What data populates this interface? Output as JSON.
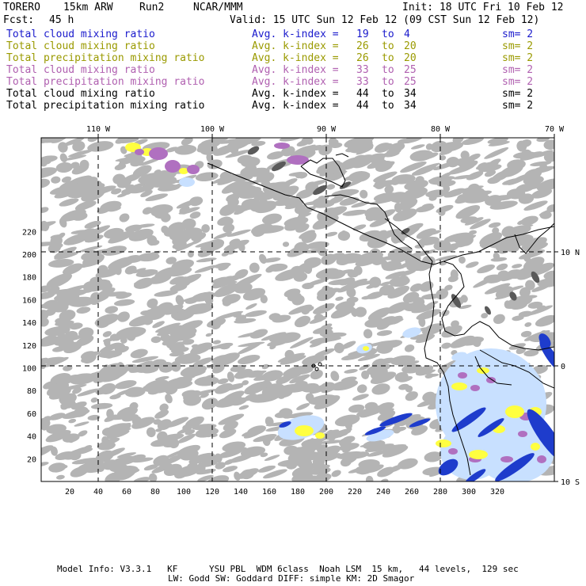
{
  "header": {
    "model": "TORERO",
    "resolution": "15km ARW",
    "run": "Run2",
    "org": "NCAR/MMM",
    "init": "Init: 18 UTC Fri 10 Feb 12",
    "fcst_label": "Fcst:",
    "fcst_value": "45 h",
    "valid": "Valid: 15 UTC Sun 12 Feb 12 (09 CST Sun 12 Feb 12)"
  },
  "legend": [
    {
      "field": "Total cloud mixing ratio",
      "avg": "Avg. k-index =",
      "from": "19",
      "to_word": "to",
      "to": "4",
      "sm": "sm= 2",
      "color": "#1a1acc"
    },
    {
      "field": "Total cloud mixing ratio",
      "avg": "Avg. k-index =",
      "from": "26",
      "to_word": "to",
      "to": "20",
      "sm": "sm= 2",
      "color": "#9a9a00"
    },
    {
      "field": "Total precipitation mixing ratio",
      "avg": "Avg. k-index =",
      "from": "26",
      "to_word": "to",
      "to": "20",
      "sm": "sm= 2",
      "color": "#9a9a00"
    },
    {
      "field": "Total cloud mixing ratio",
      "avg": "Avg. k-index =",
      "from": "33",
      "to_word": "to",
      "to": "25",
      "sm": "sm= 2",
      "color": "#b060b0"
    },
    {
      "field": "Total precipitation mixing ratio",
      "avg": "Avg. k-index =",
      "from": "33",
      "to_word": "to",
      "to": "25",
      "sm": "sm= 2",
      "color": "#b060b0"
    },
    {
      "field": "Total cloud mixing ratio",
      "avg": "Avg. k-index =",
      "from": "44",
      "to_word": "to",
      "to": "34",
      "sm": "sm= 2",
      "color": "#000000"
    },
    {
      "field": "Total precipitation mixing ratio",
      "avg": "Avg. k-index =",
      "from": "44",
      "to_word": "to",
      "to": "34",
      "sm": "sm= 2",
      "color": "#000000"
    }
  ],
  "map": {
    "lon_labels": [
      "110 W",
      "100 W",
      "90 W",
      "80 W",
      "70 W"
    ],
    "lat_labels": [
      "10 N",
      "0",
      "10 S"
    ],
    "x_ticks": [
      "20",
      "40",
      "60",
      "80",
      "100",
      "120",
      "140",
      "160",
      "180",
      "200",
      "220",
      "240",
      "260",
      "280",
      "300",
      "320"
    ],
    "y_ticks": [
      "20",
      "40",
      "60",
      "80",
      "100",
      "120",
      "140",
      "160",
      "180",
      "200",
      "220"
    ],
    "colors": {
      "gray_cloud": "#b4b4b4",
      "dark_cloud": "#5a5a5a",
      "yellow": "#ffff40",
      "purple": "#b070c0",
      "light_blue": "#c8e0ff",
      "blue": "#1e3ccc",
      "coast": "#000000"
    }
  },
  "footer": {
    "line1": "Model Info: V3.3.1   KF      YSU PBL  WDM 6class  Noah LSM  15 km,   44 levels,  129 sec",
    "line2": "LW: Godd SW: Goddard DIFF: simple KM: 2D Smagor"
  }
}
